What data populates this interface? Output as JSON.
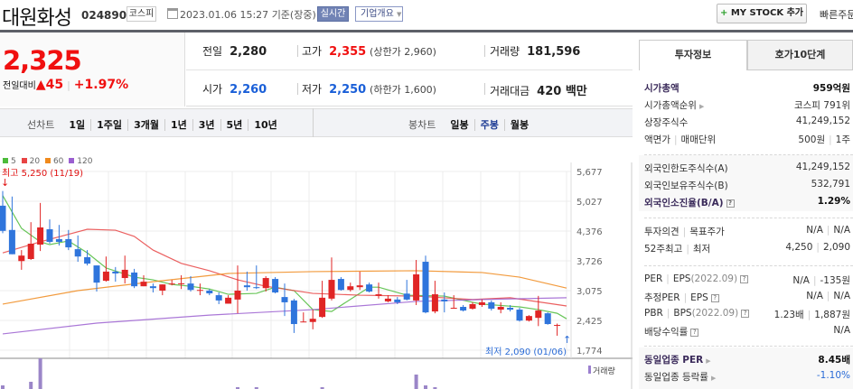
{
  "header": {
    "company_name": "대원화성",
    "code": "024890",
    "market": "코스피",
    "datetime": "2023.01.06 15:27",
    "basis": "기준(장중)",
    "realtime_label": "실시간",
    "company_overview_label": "기업개요",
    "my_stock_label": "MY STOCK 추가",
    "quick_order_label": "빠른주문"
  },
  "price": {
    "current": "2,325",
    "change_label": "전일대비",
    "change": "45",
    "change_pct": "+1.97%",
    "up_color": "#f01010",
    "down_color": "#1a5fd8"
  },
  "summary": {
    "prev_label": "전일",
    "prev": "2,280",
    "high_label": "고가",
    "high": "2,355",
    "upper_limit": "(상한가 2,960)",
    "volume_label": "거래량",
    "volume": "181,596",
    "open_label": "시가",
    "open": "2,260",
    "low_label": "저가",
    "low": "2,250",
    "lower_limit": "(하한가 1,600)",
    "amount_label": "거래대금",
    "amount": "420 백만"
  },
  "chart_tabs": {
    "line_label": "선차트",
    "line_items": [
      "1일",
      "1주일",
      "3개월",
      "1년",
      "3년",
      "5년",
      "10년"
    ],
    "candle_label": "봉차트",
    "candle_items": [
      "일봉",
      "주봉",
      "월봉"
    ],
    "candle_selected": "주봉"
  },
  "chart_data": {
    "type": "candlestick",
    "period": "주봉",
    "legend": [
      {
        "name": "5",
        "color": "#4cbb3a"
      },
      {
        "name": "20",
        "color": "#e84444"
      },
      {
        "name": "60",
        "color": "#f08a1c"
      },
      {
        "name": "120",
        "color": "#9b5fd0"
      }
    ],
    "y_ticks": [
      "5,677",
      "5,027",
      "4,376",
      "3,726",
      "3,075",
      "2,425",
      "1,774"
    ],
    "ylim": [
      1774,
      5677
    ],
    "high_annotation": "최고 5,250 (11/19)",
    "low_annotation": "최저 2,090 (01/06)",
    "volume_label": "거래량",
    "candles_ohlc": [
      [
        4930,
        5250,
        4330,
        4380
      ],
      [
        4400,
        5130,
        3870,
        3870
      ],
      [
        3720,
        3960,
        3530,
        3840
      ],
      [
        3765,
        4570,
        3745,
        4100
      ],
      [
        4080,
        4990,
        3940,
        4455
      ],
      [
        4415,
        4630,
        4100,
        4140
      ],
      [
        4200,
        4510,
        4060,
        4140
      ],
      [
        4200,
        4400,
        3960,
        4020
      ],
      [
        3980,
        4280,
        3705,
        3820
      ],
      [
        3805,
        3960,
        3625,
        3665
      ],
      [
        3625,
        3625,
        3055,
        3250
      ],
      [
        3290,
        3820,
        3270,
        3490
      ],
      [
        3490,
        3590,
        3270,
        3450
      ],
      [
        3350,
        3840,
        3230,
        3530
      ],
      [
        3470,
        3550,
        3130,
        3170
      ],
      [
        3170,
        3410,
        3170,
        3270
      ],
      [
        3170,
        3230,
        3035,
        3130
      ],
      [
        3075,
        3210,
        2975,
        3210
      ],
      [
        3210,
        3310,
        3190,
        3230
      ],
      [
        3215,
        3410,
        3110,
        3235
      ],
      [
        3230,
        3390,
        3055,
        3090
      ],
      [
        3075,
        3230,
        2975,
        3090
      ],
      [
        3075,
        3110,
        2975,
        3015
      ],
      [
        2975,
        3035,
        2780,
        2860
      ],
      [
        2790,
        2975,
        2790,
        2920
      ],
      [
        2880,
        3625,
        2580,
        3075
      ],
      [
        3190,
        3490,
        3075,
        3150
      ],
      [
        3150,
        3625,
        3110,
        3130
      ],
      [
        3130,
        3390,
        3055,
        3350
      ],
      [
        3330,
        3370,
        3015,
        3035
      ],
      [
        2935,
        3230,
        2520,
        2820
      ],
      [
        2860,
        2895,
        2150,
        2345
      ],
      [
        2385,
        2600,
        2385,
        2400
      ],
      [
        2390,
        2660,
        2230,
        2460
      ],
      [
        2500,
        3290,
        2480,
        2920
      ],
      [
        2900,
        3800,
        2860,
        3310
      ],
      [
        3330,
        3370,
        3075,
        3090
      ],
      [
        3090,
        3250,
        3055,
        3170
      ],
      [
        3150,
        3490,
        3090,
        3190
      ],
      [
        3210,
        3250,
        3035,
        3055
      ],
      [
        2960,
        3250,
        2900,
        2995
      ],
      [
        2840,
        2975,
        2820,
        2900
      ],
      [
        2880,
        2935,
        2780,
        2820
      ],
      [
        3010,
        3310,
        2860,
        2880
      ],
      [
        2860,
        3745,
        2760,
        3430
      ],
      [
        3705,
        3840,
        2580,
        2600
      ],
      [
        2620,
        3290,
        2580,
        2995
      ],
      [
        2880,
        3035,
        2600,
        2840
      ],
      [
        2680,
        2975,
        2680,
        2700
      ],
      [
        2720,
        2760,
        2620,
        2640
      ],
      [
        2680,
        2820,
        2660,
        2780
      ],
      [
        2760,
        2880,
        2720,
        2820
      ],
      [
        2820,
        2860,
        2640,
        2680
      ],
      [
        2660,
        2820,
        2580,
        2720
      ],
      [
        2700,
        2760,
        2620,
        2660
      ],
      [
        2660,
        2700,
        2400,
        2420
      ],
      [
        2420,
        2540,
        2400,
        2520
      ],
      [
        2480,
        2960,
        2300,
        2640
      ],
      [
        2580,
        2600,
        2330,
        2345
      ],
      [
        2320,
        2355,
        2090,
        2325
      ]
    ],
    "ma_lines": [
      {
        "name": "5",
        "points": [
          [
            0,
            5150
          ],
          [
            2,
            4435
          ],
          [
            4,
            4140
          ],
          [
            5,
            4080
          ],
          [
            7,
            4160
          ],
          [
            9,
            3900
          ],
          [
            11,
            3570
          ],
          [
            14,
            3370
          ],
          [
            16,
            3310
          ],
          [
            18,
            3210
          ],
          [
            20,
            3170
          ],
          [
            22,
            3110
          ],
          [
            24,
            2995
          ],
          [
            27,
            3015
          ],
          [
            29,
            3150
          ],
          [
            31,
            3075
          ],
          [
            33,
            2660
          ],
          [
            35,
            2620
          ],
          [
            39,
            3150
          ],
          [
            40,
            3150
          ],
          [
            43,
            2975
          ],
          [
            47,
            2955
          ],
          [
            50,
            2820
          ],
          [
            51,
            2780
          ],
          [
            55,
            2720
          ],
          [
            57,
            2660
          ],
          [
            59,
            2580
          ],
          [
            60,
            2460
          ]
        ]
      },
      {
        "name": "20",
        "points": [
          [
            0,
            3900
          ],
          [
            4,
            4140
          ],
          [
            9,
            4415
          ],
          [
            12,
            4395
          ],
          [
            14,
            4260
          ],
          [
            16,
            3960
          ],
          [
            19,
            3670
          ],
          [
            22,
            3510
          ],
          [
            25,
            3310
          ],
          [
            28,
            3170
          ],
          [
            33,
            3015
          ],
          [
            38,
            2975
          ],
          [
            44,
            2955
          ],
          [
            50,
            2880
          ],
          [
            54,
            2920
          ],
          [
            60,
            2740
          ]
        ]
      },
      {
        "name": "60",
        "points": [
          [
            0,
            2780
          ],
          [
            8,
            3075
          ],
          [
            16,
            3270
          ],
          [
            24,
            3450
          ],
          [
            33,
            3490
          ],
          [
            44,
            3510
          ],
          [
            51,
            3470
          ],
          [
            55,
            3370
          ],
          [
            60,
            3130
          ]
        ]
      },
      {
        "name": "120",
        "points": [
          [
            0,
            2130
          ],
          [
            10,
            2365
          ],
          [
            22,
            2540
          ],
          [
            33,
            2660
          ],
          [
            44,
            2840
          ],
          [
            51,
            2880
          ],
          [
            60,
            2920
          ]
        ]
      }
    ],
    "volume_relative": [
      [
        0,
        0.1
      ],
      [
        3,
        0.2
      ],
      [
        4,
        0.85
      ],
      [
        25,
        0.05
      ],
      [
        27,
        0.05
      ],
      [
        34,
        0.05
      ],
      [
        44,
        0.4
      ],
      [
        45,
        0.1
      ],
      [
        46,
        0.05
      ]
    ]
  },
  "invest_panel": {
    "tabs": [
      "투자정보",
      "호가10단계"
    ],
    "market_cap_label": "시가총액",
    "market_cap": "959억원",
    "cap_rank_label": "시가총액순위",
    "cap_rank": "코스피 791위",
    "shares_label": "상장주식수",
    "shares": "41,249,152",
    "face_label": "액면가",
    "unit_label": "매매단위",
    "face": "500원",
    "unit": "1주",
    "foreign_limit_label": "외국인한도주식수(A)",
    "foreign_limit": "41,249,152",
    "foreign_hold_label": "외국인보유주식수(B)",
    "foreign_hold": "532,791",
    "foreign_ratio_label": "외국인소진율(B/A)",
    "foreign_ratio": "1.29%",
    "opinion_label": "투자의견",
    "target_label": "목표주가",
    "opinion": "N/A",
    "target": "N/A",
    "w52_high_label": "52주최고",
    "w52_low_label": "최저",
    "w52_high": "4,250",
    "w52_low": "2,090",
    "per_label": "PER",
    "eps_label": "EPS",
    "eps_period": "(2022.09)",
    "per": "N/A",
    "eps": "-135원",
    "est_per_label": "추정PER",
    "est_eps_label": "EPS",
    "est_per": "N/A",
    "est_eps": "N/A",
    "pbr_label": "PBR",
    "bps_label": "BPS",
    "bps_period": "(2022.09)",
    "pbr": "1.23배",
    "bps": "1,887원",
    "div_label": "배당수익률",
    "div": "N/A",
    "sector_per_label": "동일업종 PER",
    "sector_per": "8.45배",
    "sector_chg_label": "동일업종 등락률",
    "sector_chg": "-1.10%"
  }
}
